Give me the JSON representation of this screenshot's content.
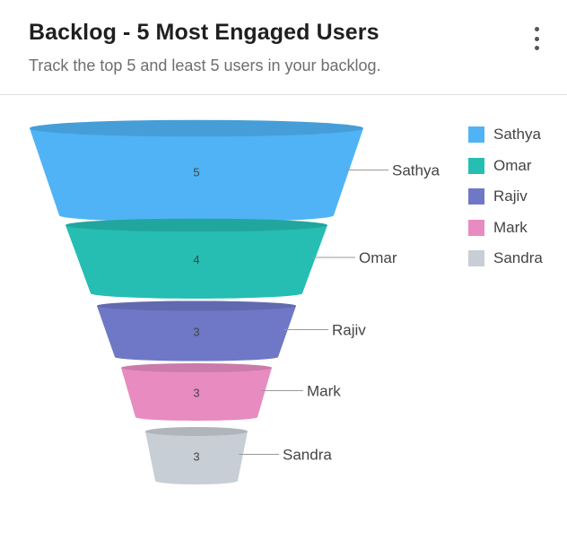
{
  "card": {
    "title": "Backlog - 5 Most Engaged Users",
    "subtitle": "Track the top 5 and least 5 users in your backlog.",
    "menu_icon": "more-vertical-icon"
  },
  "chart_data": {
    "type": "funnel",
    "categories": [
      "Sathya",
      "Omar",
      "Rajiv",
      "Mark",
      "Sandra"
    ],
    "values": [
      5,
      4,
      3,
      3,
      3
    ],
    "colors": [
      "#4fb3f6",
      "#26bdb3",
      "#6e78c6",
      "#e78bc0",
      "#c8ced6"
    ],
    "legend": {
      "position": "right",
      "items": [
        "Sathya",
        "Omar",
        "Rajiv",
        "Mark",
        "Sandra"
      ]
    }
  }
}
